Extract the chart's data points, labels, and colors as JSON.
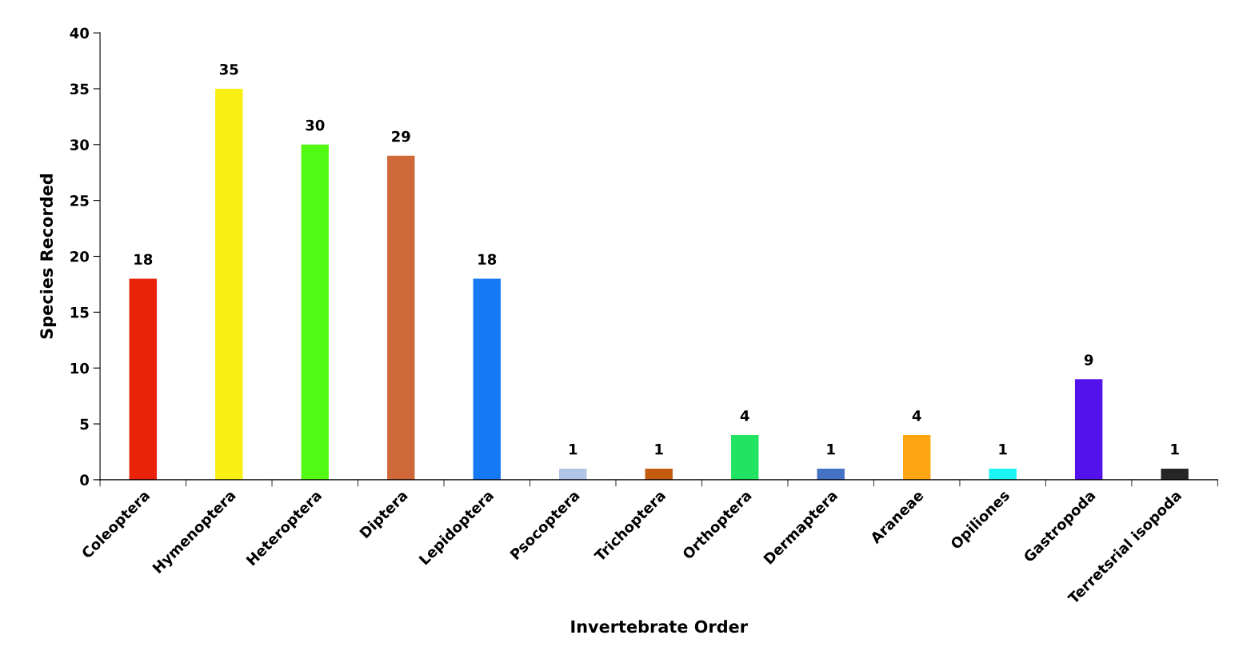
{
  "chart_data": {
    "type": "bar",
    "xlabel": "Invertebrate Order",
    "ylabel": "Species Recorded",
    "categories": [
      "Coleoptera",
      "Hymenoptera",
      "Heteroptera",
      "Diptera",
      "Lepidoptera",
      "Psocoptera",
      "Trichoptera",
      "Orthoptera",
      "Dermaptera",
      "Araneae",
      "Opiliones",
      "Gastropoda",
      "Terretsrial isopoda"
    ],
    "values": [
      18,
      35,
      30,
      29,
      18,
      1,
      1,
      4,
      1,
      4,
      1,
      9,
      1
    ],
    "colors": [
      "#e8230a",
      "#f9ef12",
      "#52f912",
      "#d0693a",
      "#1479f2",
      "#b0c4e6",
      "#c55a11",
      "#21e462",
      "#4472c4",
      "#ffa512",
      "#1cf3f3",
      "#5312ec",
      "#262626"
    ],
    "ylim": [
      0,
      40
    ],
    "yticks": [
      0,
      5,
      10,
      15,
      20,
      25,
      30,
      35,
      40
    ],
    "grid": false,
    "legend": false,
    "data_labels": true
  }
}
